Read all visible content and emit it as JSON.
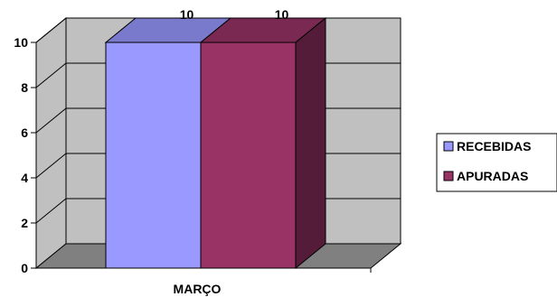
{
  "chart_data": {
    "type": "bar",
    "categories": [
      "MARÇO"
    ],
    "series": [
      {
        "name": "RECEBIDAS",
        "values": [
          10
        ],
        "color": "#9999ff"
      },
      {
        "name": "APURADAS",
        "values": [
          10
        ],
        "color": "#993366"
      }
    ],
    "ylim": [
      0,
      10
    ],
    "yticks": [
      "0",
      "2",
      "4",
      "6",
      "8",
      "10"
    ],
    "data_labels": [
      "10",
      "10"
    ],
    "grid": true,
    "legend": "right",
    "wall_color": "#c0c0c0",
    "floor_color": "#808080"
  }
}
